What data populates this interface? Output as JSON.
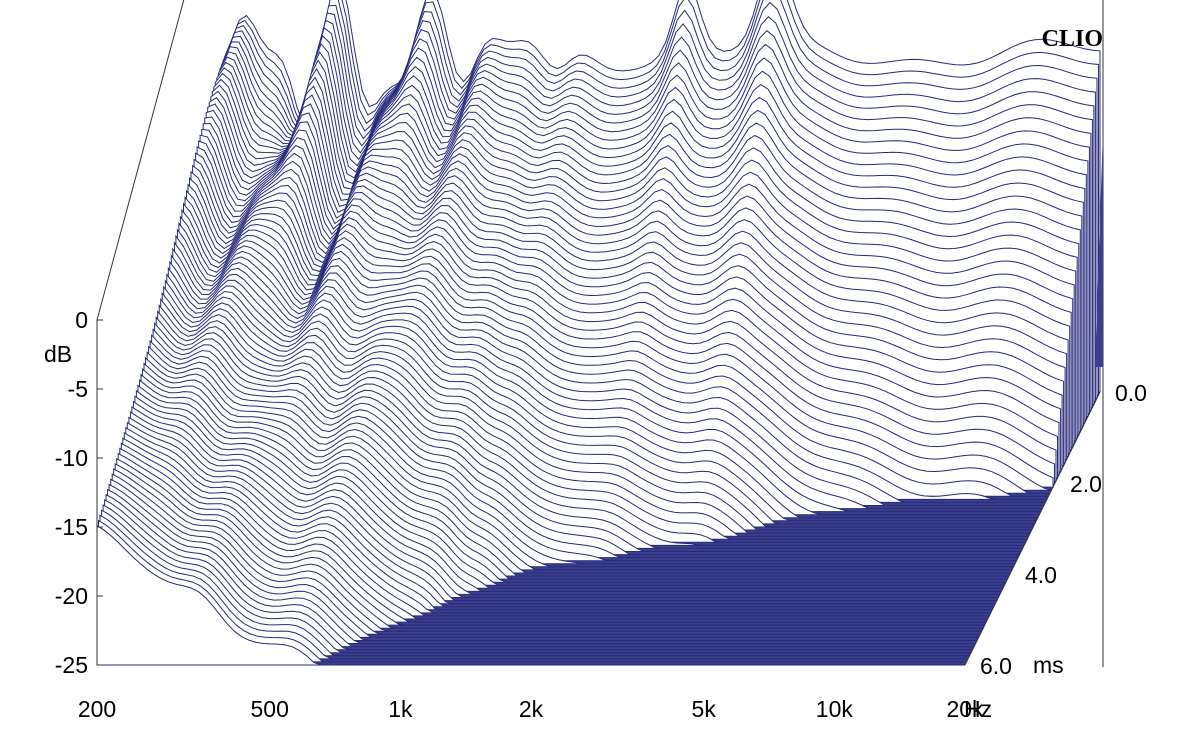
{
  "chart_data": {
    "type": "waterfall-3d",
    "brand": "CLIO",
    "x_axis": {
      "scale": "log",
      "range": [
        200,
        20000
      ],
      "ticks": [
        {
          "value": 200,
          "label": "200"
        },
        {
          "value": 500,
          "label": "500"
        },
        {
          "value": 1000,
          "label": "1k"
        },
        {
          "value": 2000,
          "label": "2k"
        },
        {
          "value": 5000,
          "label": "5k"
        },
        {
          "value": 10000,
          "label": "10k"
        },
        {
          "value": 20000,
          "label": "20k"
        }
      ],
      "unit": "Hz"
    },
    "y_axis": {
      "range": [
        -25,
        0
      ],
      "ticks": [
        {
          "value": 0,
          "label": "0"
        },
        {
          "value": -5,
          "label": "-5"
        },
        {
          "value": -10,
          "label": "-10"
        },
        {
          "value": -15,
          "label": "-15"
        },
        {
          "value": -20,
          "label": "-20"
        },
        {
          "value": -25,
          "label": "-25"
        }
      ],
      "unit": "dB"
    },
    "z_axis": {
      "range": [
        0,
        6
      ],
      "ticks": [
        {
          "value": 0,
          "label": "0.0"
        },
        {
          "value": 2,
          "label": "2.0"
        },
        {
          "value": 4,
          "label": "4.0"
        },
        {
          "value": 6,
          "label": "6.0"
        }
      ],
      "unit": "ms"
    },
    "slice_count": 90,
    "line_color": "#27297a",
    "floor_color": "#3b3f8c"
  }
}
